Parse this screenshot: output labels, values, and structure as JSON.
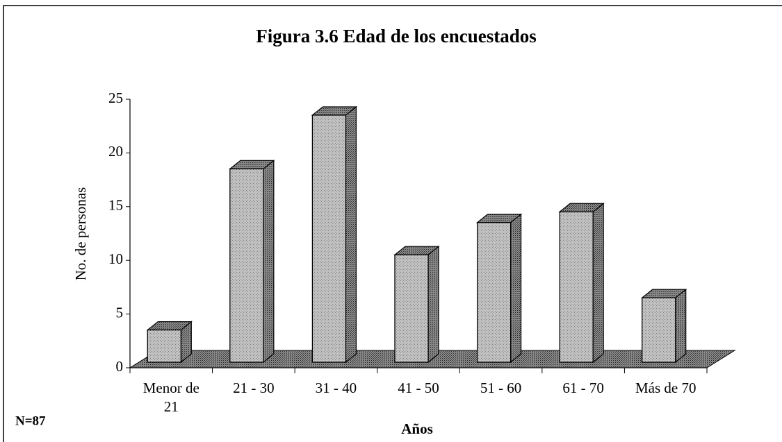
{
  "chart_data": {
    "type": "bar3d",
    "title": "Figura 3.6 Edad de los encuestados",
    "y_label": "No. de personas",
    "x_label": "Años",
    "note": "N=87",
    "categories": [
      "Menor de 21",
      "21 - 30",
      "31 - 40",
      "41 - 50",
      "51 - 60",
      "61 - 70",
      "Más de 70"
    ],
    "values": [
      3,
      18,
      23,
      10,
      13,
      14,
      6
    ],
    "ylim": [
      0,
      25
    ],
    "yticks": [
      0,
      5,
      10,
      15,
      20,
      25
    ],
    "color": "#b8b8b8"
  }
}
